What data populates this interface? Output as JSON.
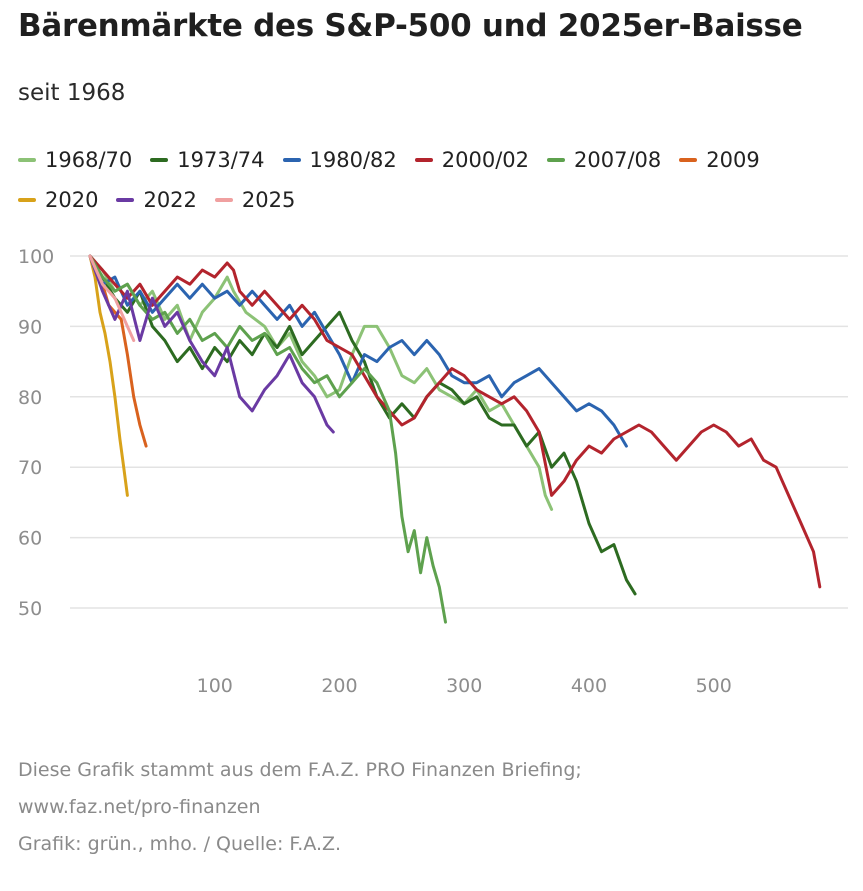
{
  "title": "Bärenmärkte des S&P-500 und 2025er-Baisse",
  "subtitle": "seit 1968",
  "footer": {
    "line1": "Diese Grafik stammt aus dem F.A.Z. PRO Finanzen Briefing;",
    "line2": "www.faz.net/pro-finanzen",
    "line3": "Grafik: grün., mho. / Quelle: F.A.Z."
  },
  "chart_data": {
    "type": "line",
    "xlim": [
      0,
      590
    ],
    "ylim": [
      45,
      100
    ],
    "x_ticks": [
      100,
      200,
      300,
      400,
      500
    ],
    "y_ticks": [
      50,
      60,
      70,
      80,
      90,
      100
    ],
    "grid": "horizontal",
    "legend_position": "top",
    "series": [
      {
        "name": "1968/70",
        "color": "#8cc276",
        "points": [
          [
            0,
            100
          ],
          [
            10,
            98
          ],
          [
            20,
            95
          ],
          [
            30,
            96
          ],
          [
            40,
            93
          ],
          [
            50,
            95
          ],
          [
            60,
            91
          ],
          [
            70,
            93
          ],
          [
            80,
            88
          ],
          [
            90,
            92
          ],
          [
            100,
            94
          ],
          [
            110,
            97
          ],
          [
            115,
            95
          ],
          [
            125,
            92
          ],
          [
            140,
            90
          ],
          [
            150,
            87
          ],
          [
            160,
            89
          ],
          [
            170,
            85
          ],
          [
            180,
            83
          ],
          [
            190,
            80
          ],
          [
            200,
            81
          ],
          [
            210,
            86
          ],
          [
            220,
            90
          ],
          [
            230,
            90
          ],
          [
            240,
            87
          ],
          [
            250,
            83
          ],
          [
            260,
            82
          ],
          [
            270,
            84
          ],
          [
            280,
            81
          ],
          [
            290,
            80
          ],
          [
            300,
            79
          ],
          [
            310,
            81
          ],
          [
            320,
            78
          ],
          [
            330,
            79
          ],
          [
            340,
            76
          ],
          [
            350,
            73
          ],
          [
            360,
            70
          ],
          [
            365,
            66
          ],
          [
            370,
            64
          ]
        ]
      },
      {
        "name": "1973/74",
        "color": "#2d6b21",
        "points": [
          [
            0,
            100
          ],
          [
            10,
            97
          ],
          [
            20,
            94
          ],
          [
            30,
            92
          ],
          [
            40,
            95
          ],
          [
            50,
            90
          ],
          [
            60,
            88
          ],
          [
            70,
            85
          ],
          [
            80,
            87
          ],
          [
            90,
            84
          ],
          [
            100,
            87
          ],
          [
            110,
            85
          ],
          [
            120,
            88
          ],
          [
            130,
            86
          ],
          [
            140,
            89
          ],
          [
            150,
            87
          ],
          [
            160,
            90
          ],
          [
            170,
            86
          ],
          [
            180,
            88
          ],
          [
            190,
            90
          ],
          [
            200,
            92
          ],
          [
            210,
            88
          ],
          [
            220,
            85
          ],
          [
            230,
            80
          ],
          [
            240,
            77
          ],
          [
            250,
            79
          ],
          [
            260,
            77
          ],
          [
            270,
            80
          ],
          [
            280,
            82
          ],
          [
            290,
            81
          ],
          [
            300,
            79
          ],
          [
            310,
            80
          ],
          [
            320,
            77
          ],
          [
            330,
            76
          ],
          [
            340,
            76
          ],
          [
            350,
            73
          ],
          [
            360,
            75
          ],
          [
            370,
            70
          ],
          [
            380,
            72
          ],
          [
            390,
            68
          ],
          [
            400,
            62
          ],
          [
            410,
            58
          ],
          [
            420,
            59
          ],
          [
            430,
            54
          ],
          [
            437,
            52
          ]
        ]
      },
      {
        "name": "1980/82",
        "color": "#2b64b0",
        "points": [
          [
            0,
            100
          ],
          [
            10,
            96
          ],
          [
            20,
            97
          ],
          [
            30,
            93
          ],
          [
            40,
            95
          ],
          [
            50,
            92
          ],
          [
            60,
            94
          ],
          [
            70,
            96
          ],
          [
            80,
            94
          ],
          [
            90,
            96
          ],
          [
            100,
            94
          ],
          [
            110,
            95
          ],
          [
            120,
            93
          ],
          [
            130,
            95
          ],
          [
            140,
            93
          ],
          [
            150,
            91
          ],
          [
            160,
            93
          ],
          [
            170,
            90
          ],
          [
            180,
            92
          ],
          [
            190,
            89
          ],
          [
            200,
            86
          ],
          [
            210,
            82
          ],
          [
            220,
            86
          ],
          [
            230,
            85
          ],
          [
            240,
            87
          ],
          [
            250,
            88
          ],
          [
            260,
            86
          ],
          [
            270,
            88
          ],
          [
            280,
            86
          ],
          [
            290,
            83
          ],
          [
            300,
            82
          ],
          [
            310,
            82
          ],
          [
            320,
            83
          ],
          [
            330,
            80
          ],
          [
            340,
            82
          ],
          [
            350,
            83
          ],
          [
            360,
            84
          ],
          [
            370,
            82
          ],
          [
            380,
            80
          ],
          [
            390,
            78
          ],
          [
            400,
            79
          ],
          [
            410,
            78
          ],
          [
            420,
            76
          ],
          [
            430,
            73
          ]
        ]
      },
      {
        "name": "2000/02",
        "color": "#b3242d",
        "points": [
          [
            0,
            100
          ],
          [
            10,
            98
          ],
          [
            20,
            96
          ],
          [
            30,
            94
          ],
          [
            40,
            96
          ],
          [
            50,
            93
          ],
          [
            60,
            95
          ],
          [
            70,
            97
          ],
          [
            80,
            96
          ],
          [
            90,
            98
          ],
          [
            100,
            97
          ],
          [
            110,
            99
          ],
          [
            115,
            98
          ],
          [
            120,
            95
          ],
          [
            130,
            93
          ],
          [
            140,
            95
          ],
          [
            150,
            93
          ],
          [
            160,
            91
          ],
          [
            170,
            93
          ],
          [
            180,
            91
          ],
          [
            190,
            88
          ],
          [
            200,
            87
          ],
          [
            210,
            86
          ],
          [
            220,
            83
          ],
          [
            230,
            80
          ],
          [
            240,
            78
          ],
          [
            250,
            76
          ],
          [
            260,
            77
          ],
          [
            270,
            80
          ],
          [
            280,
            82
          ],
          [
            290,
            84
          ],
          [
            300,
            83
          ],
          [
            310,
            81
          ],
          [
            320,
            80
          ],
          [
            330,
            79
          ],
          [
            340,
            80
          ],
          [
            350,
            78
          ],
          [
            360,
            75
          ],
          [
            370,
            66
          ],
          [
            380,
            68
          ],
          [
            390,
            71
          ],
          [
            400,
            73
          ],
          [
            410,
            72
          ],
          [
            420,
            74
          ],
          [
            430,
            75
          ],
          [
            440,
            76
          ],
          [
            450,
            75
          ],
          [
            460,
            73
          ],
          [
            470,
            71
          ],
          [
            480,
            73
          ],
          [
            490,
            75
          ],
          [
            500,
            76
          ],
          [
            510,
            75
          ],
          [
            520,
            73
          ],
          [
            530,
            74
          ],
          [
            540,
            71
          ],
          [
            550,
            70
          ],
          [
            560,
            66
          ],
          [
            570,
            62
          ],
          [
            580,
            58
          ],
          [
            585,
            53
          ]
        ]
      },
      {
        "name": "2007/08",
        "color": "#5ea14e",
        "points": [
          [
            0,
            100
          ],
          [
            10,
            97
          ],
          [
            20,
            95
          ],
          [
            30,
            96
          ],
          [
            40,
            93
          ],
          [
            50,
            91
          ],
          [
            60,
            92
          ],
          [
            70,
            89
          ],
          [
            80,
            91
          ],
          [
            90,
            88
          ],
          [
            100,
            89
          ],
          [
            110,
            87
          ],
          [
            120,
            90
          ],
          [
            130,
            88
          ],
          [
            140,
            89
          ],
          [
            150,
            86
          ],
          [
            160,
            87
          ],
          [
            170,
            84
          ],
          [
            180,
            82
          ],
          [
            190,
            83
          ],
          [
            200,
            80
          ],
          [
            210,
            82
          ],
          [
            220,
            84
          ],
          [
            230,
            82
          ],
          [
            240,
            78
          ],
          [
            245,
            72
          ],
          [
            250,
            63
          ],
          [
            255,
            58
          ],
          [
            260,
            61
          ],
          [
            265,
            55
          ],
          [
            270,
            60
          ],
          [
            275,
            56
          ],
          [
            280,
            53
          ],
          [
            285,
            48
          ]
        ]
      },
      {
        "name": "2009",
        "color": "#d9621e",
        "points": [
          [
            0,
            100
          ],
          [
            5,
            97
          ],
          [
            10,
            96
          ],
          [
            15,
            93
          ],
          [
            20,
            92
          ],
          [
            25,
            91
          ],
          [
            30,
            86
          ],
          [
            35,
            80
          ],
          [
            40,
            76
          ],
          [
            45,
            73
          ]
        ]
      },
      {
        "name": "2020",
        "color": "#d8a21a",
        "points": [
          [
            0,
            100
          ],
          [
            4,
            97
          ],
          [
            8,
            92
          ],
          [
            12,
            89
          ],
          [
            16,
            85
          ],
          [
            20,
            80
          ],
          [
            24,
            74
          ],
          [
            27,
            70
          ],
          [
            30,
            66
          ]
        ]
      },
      {
        "name": "2022",
        "color": "#6a3aa3",
        "points": [
          [
            0,
            100
          ],
          [
            10,
            95
          ],
          [
            20,
            91
          ],
          [
            30,
            95
          ],
          [
            40,
            88
          ],
          [
            50,
            94
          ],
          [
            60,
            90
          ],
          [
            70,
            92
          ],
          [
            80,
            88
          ],
          [
            90,
            85
          ],
          [
            100,
            83
          ],
          [
            110,
            87
          ],
          [
            120,
            80
          ],
          [
            130,
            78
          ],
          [
            140,
            81
          ],
          [
            150,
            83
          ],
          [
            160,
            86
          ],
          [
            170,
            82
          ],
          [
            180,
            80
          ],
          [
            190,
            76
          ],
          [
            195,
            75
          ]
        ]
      },
      {
        "name": "2025",
        "color": "#f0a0a0",
        "points": [
          [
            0,
            100
          ],
          [
            5,
            98
          ],
          [
            10,
            96
          ],
          [
            15,
            95
          ],
          [
            20,
            94
          ],
          [
            25,
            92
          ],
          [
            30,
            90
          ],
          [
            35,
            88
          ]
        ]
      }
    ]
  }
}
